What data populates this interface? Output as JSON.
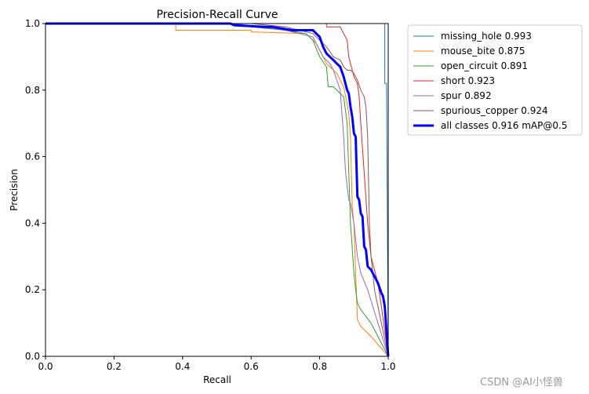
{
  "watermark": "CSDN @AI小怪兽",
  "chart_data": {
    "type": "line",
    "title": "Precision-Recall Curve",
    "xlabel": "Recall",
    "ylabel": "Precision",
    "xlim": [
      0,
      1
    ],
    "ylim": [
      0,
      1
    ],
    "xticks": [
      "0.0",
      "0.2",
      "0.4",
      "0.6",
      "0.8",
      "1.0"
    ],
    "yticks": [
      "0.0",
      "0.2",
      "0.4",
      "0.6",
      "0.8",
      "1.0"
    ],
    "grid": false,
    "legend_position": "outside-top-right",
    "series": [
      {
        "name": "missing_hole 0.993",
        "color": "#1f77b4",
        "width": 1,
        "x": [
          0,
          0.98,
          0.985,
          0.99,
          0.99,
          0.995,
          0.995,
          1.0
        ],
        "y": [
          1.0,
          1.0,
          1.0,
          1.0,
          0.82,
          0.82,
          0.82,
          0.0
        ]
      },
      {
        "name": "mouse_bite 0.875",
        "color": "#ff7f0e",
        "width": 1,
        "x": [
          0,
          0.38,
          0.38,
          0.6,
          0.6,
          0.76,
          0.79,
          0.8,
          0.81,
          0.82,
          0.84,
          0.85,
          0.86,
          0.87,
          0.88,
          0.885,
          0.89,
          0.895,
          0.9,
          0.905,
          0.91,
          0.92,
          0.95,
          1.0
        ],
        "y": [
          1.0,
          1.0,
          0.98,
          0.98,
          0.975,
          0.97,
          0.94,
          0.92,
          0.9,
          0.88,
          0.86,
          0.85,
          0.83,
          0.81,
          0.76,
          0.73,
          0.66,
          0.45,
          0.4,
          0.25,
          0.11,
          0.09,
          0.06,
          0.0
        ]
      },
      {
        "name": "open_circuit 0.891",
        "color": "#2ca02c",
        "width": 1,
        "x": [
          0,
          0.55,
          0.6,
          0.7,
          0.76,
          0.78,
          0.8,
          0.82,
          0.825,
          0.83,
          0.84,
          0.85,
          0.86,
          0.87,
          0.88,
          0.89,
          0.9,
          0.905,
          0.91,
          0.92,
          0.95,
          1.0
        ],
        "y": [
          1.0,
          1.0,
          0.99,
          0.98,
          0.97,
          0.95,
          0.9,
          0.87,
          0.81,
          0.81,
          0.81,
          0.8,
          0.79,
          0.78,
          0.7,
          0.4,
          0.25,
          0.2,
          0.16,
          0.14,
          0.1,
          0.0
        ]
      },
      {
        "name": "short 0.923",
        "color": "#d62728",
        "width": 1,
        "x": [
          0,
          0.78,
          0.8,
          0.82,
          0.82,
          0.86,
          0.87,
          0.88,
          0.885,
          0.89,
          0.9,
          0.91,
          0.915,
          0.92,
          0.93,
          0.94,
          0.95,
          0.96,
          0.97,
          0.98,
          1.0
        ],
        "y": [
          1.0,
          1.0,
          1.0,
          1.0,
          0.99,
          0.99,
          0.97,
          0.95,
          0.9,
          0.88,
          0.84,
          0.82,
          0.78,
          0.7,
          0.55,
          0.4,
          0.3,
          0.26,
          0.22,
          0.15,
          0.0
        ]
      },
      {
        "name": "spur 0.892",
        "color": "#9467bd",
        "width": 1,
        "x": [
          0,
          0.55,
          0.7,
          0.78,
          0.8,
          0.81,
          0.82,
          0.83,
          0.84,
          0.85,
          0.86,
          0.87,
          0.875,
          0.88,
          0.885,
          0.89,
          0.9,
          0.905,
          0.91,
          0.92,
          0.94,
          1.0
        ],
        "y": [
          1.0,
          1.0,
          0.98,
          0.96,
          0.92,
          0.9,
          0.89,
          0.88,
          0.86,
          0.83,
          0.8,
          0.66,
          0.56,
          0.51,
          0.47,
          0.46,
          0.4,
          0.35,
          0.3,
          0.25,
          0.2,
          0.0
        ]
      },
      {
        "name": "spurious_copper 0.924",
        "color": "#8c564b",
        "width": 1,
        "x": [
          0,
          0.6,
          0.7,
          0.78,
          0.8,
          0.82,
          0.84,
          0.86,
          0.87,
          0.88,
          0.89,
          0.9,
          0.91,
          0.92,
          0.93,
          0.935,
          0.94,
          0.945,
          0.95,
          0.96,
          1.0
        ],
        "y": [
          1.0,
          1.0,
          0.99,
          0.97,
          0.95,
          0.93,
          0.9,
          0.89,
          0.87,
          0.86,
          0.86,
          0.85,
          0.83,
          0.8,
          0.78,
          0.75,
          0.66,
          0.4,
          0.3,
          0.2,
          0.0
        ]
      },
      {
        "name": "all classes 0.916 mAP@0.5",
        "color": "#0000ff",
        "width": 3,
        "x": [
          0,
          0.54,
          0.55,
          0.64,
          0.66,
          0.69,
          0.72,
          0.78,
          0.79,
          0.8,
          0.81,
          0.82,
          0.83,
          0.84,
          0.85,
          0.86,
          0.87,
          0.875,
          0.88,
          0.885,
          0.89,
          0.895,
          0.9,
          0.905,
          0.91,
          0.915,
          0.92,
          0.925,
          0.93,
          0.935,
          0.94,
          0.95,
          0.96,
          0.97,
          0.98,
          0.985,
          0.99,
          1.0
        ],
        "y": [
          1.0,
          1.0,
          0.995,
          0.99,
          0.99,
          0.985,
          0.98,
          0.98,
          0.97,
          0.96,
          0.93,
          0.91,
          0.9,
          0.89,
          0.88,
          0.87,
          0.84,
          0.82,
          0.8,
          0.79,
          0.75,
          0.72,
          0.67,
          0.66,
          0.48,
          0.47,
          0.43,
          0.42,
          0.33,
          0.32,
          0.27,
          0.26,
          0.24,
          0.22,
          0.19,
          0.18,
          0.15,
          0.0
        ]
      }
    ]
  }
}
